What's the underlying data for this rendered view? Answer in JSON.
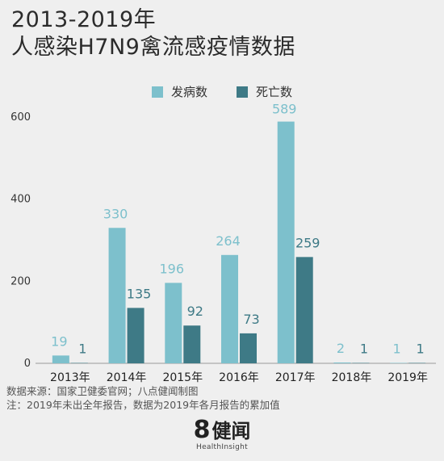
{
  "title_lines": [
    "2013-2019年",
    "人感染H7N9禽流感疫情数据"
  ],
  "legend": [
    {
      "label": "发病数",
      "color": "#7dc0cc"
    },
    {
      "label": "死亡数",
      "color": "#3e7a86"
    }
  ],
  "chart_data": {
    "type": "bar",
    "categories": [
      "2013年",
      "2014年",
      "2015年",
      "2016年",
      "2017年",
      "2018年",
      "2019年"
    ],
    "series": [
      {
        "name": "发病数",
        "color": "#7dc0cc",
        "label_color": "#7dc0cc",
        "values": [
          19,
          330,
          196,
          264,
          589,
          2,
          1
        ]
      },
      {
        "name": "死亡数",
        "color": "#3e7a86",
        "label_color": "#3e7a86",
        "values": [
          1,
          135,
          92,
          73,
          259,
          1,
          1
        ]
      }
    ],
    "yticks": [
      0,
      200,
      400,
      600
    ],
    "ylim": [
      0,
      600
    ],
    "grid": false,
    "legend_position": "top-center"
  },
  "notes": {
    "source": "数据来源：国家卫健委官网；八点健闻制图",
    "note": "注：2019年未出全年报告，数据为2019年各月报告的累加值"
  },
  "logo": {
    "number": "8",
    "cn": "健闻",
    "en": "HealthInsight"
  }
}
